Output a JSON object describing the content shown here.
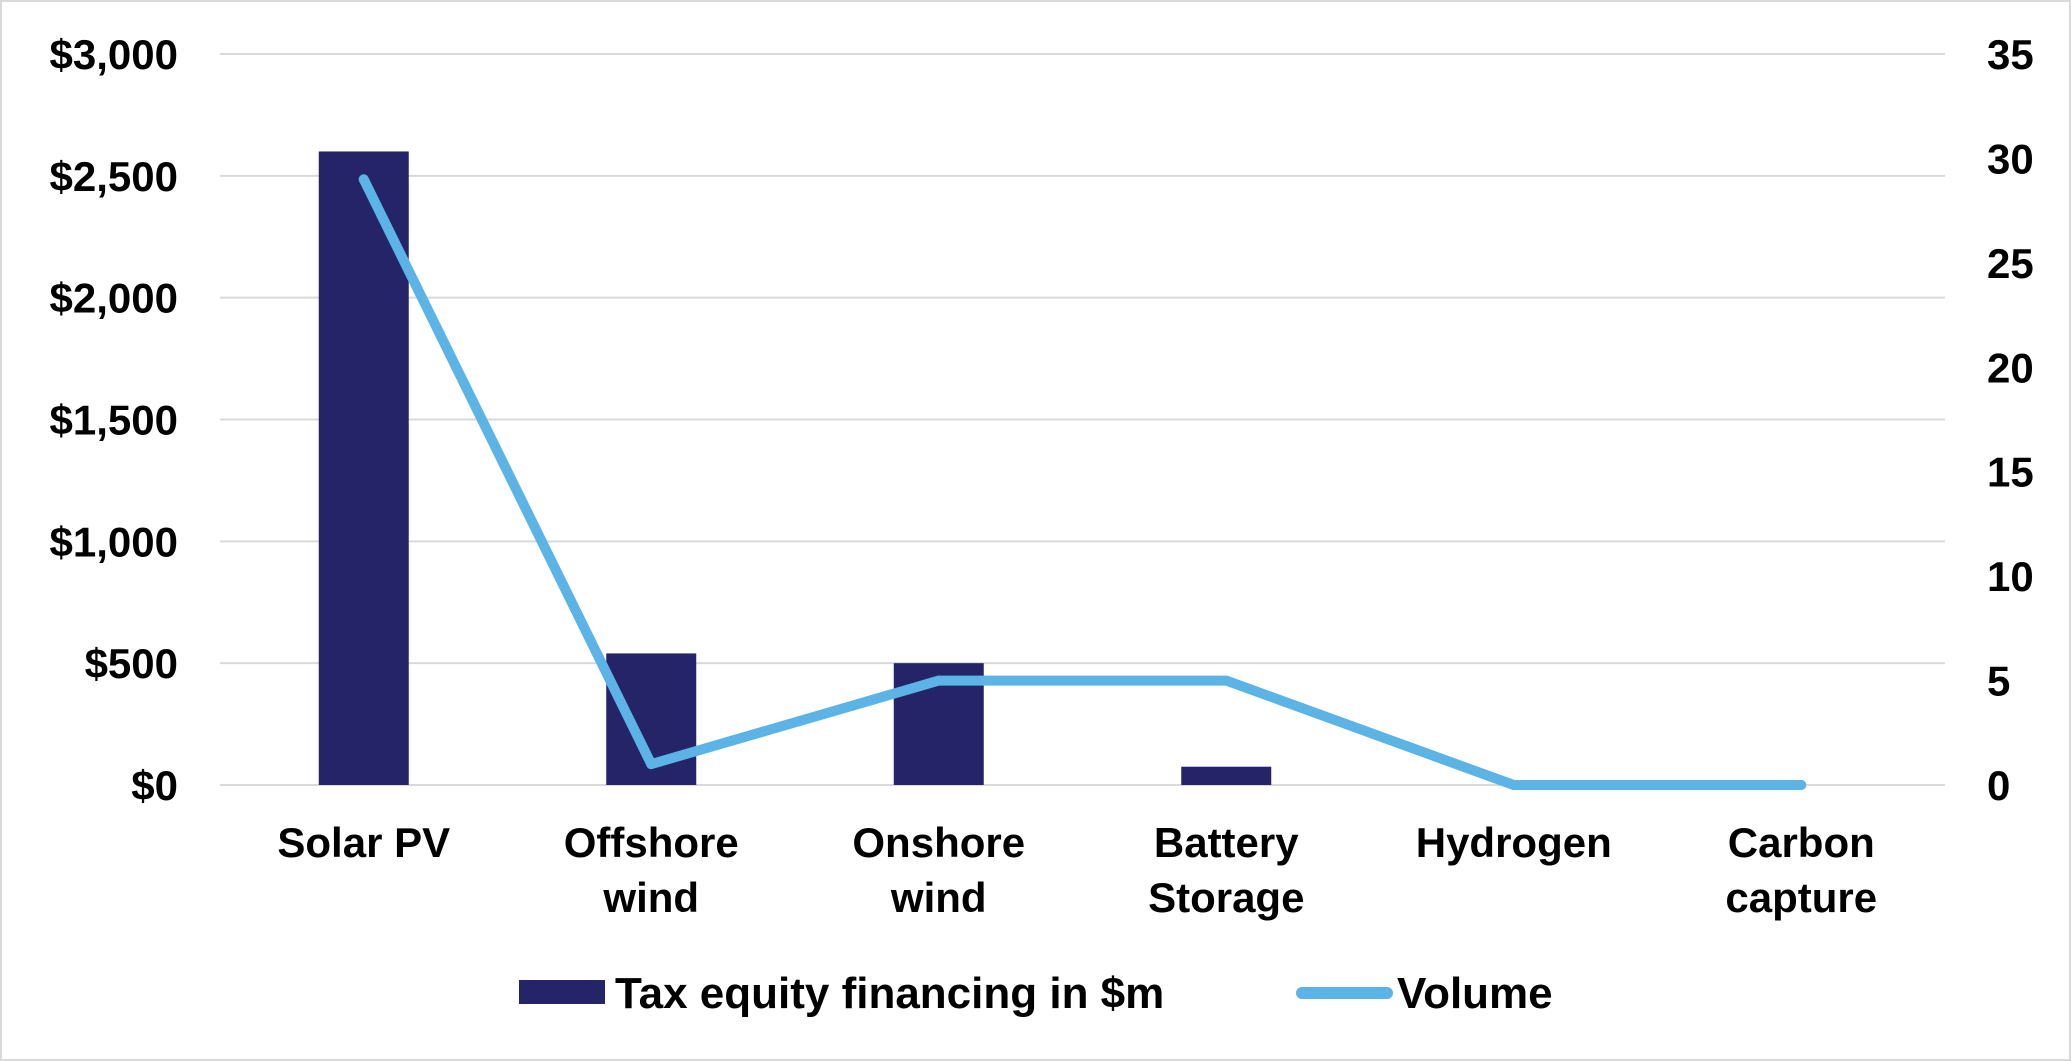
{
  "chart_data": {
    "type": "bar",
    "categories": [
      [
        "Solar PV"
      ],
      [
        "Offshore",
        "wind"
      ],
      [
        "Onshore",
        "wind"
      ],
      [
        "Battery",
        "Storage"
      ],
      [
        "Hydrogen"
      ],
      [
        "Carbon",
        "capture"
      ]
    ],
    "series": [
      {
        "name": "Tax equity financing in $m",
        "type": "bar",
        "axis": "left",
        "color": "#252469",
        "values": [
          2600,
          540,
          500,
          75,
          0,
          0
        ]
      },
      {
        "name": "Volume",
        "type": "line",
        "axis": "right",
        "color": "#5bb4e5",
        "values": [
          29,
          1,
          5,
          5,
          0,
          0
        ]
      }
    ],
    "y_left": {
      "min": 0,
      "max": 3000,
      "ticks": [
        0,
        500,
        1000,
        1500,
        2000,
        2500,
        3000
      ],
      "tick_labels": [
        "$0",
        "$500",
        "$1,000",
        "$1,500",
        "$2,000",
        "$2,500",
        "$3,000"
      ]
    },
    "y_right": {
      "min": 0,
      "max": 35,
      "ticks": [
        0,
        5,
        10,
        15,
        20,
        25,
        30,
        35
      ],
      "tick_labels": [
        "0",
        "5",
        "10",
        "15",
        "20",
        "25",
        "30",
        "35"
      ]
    },
    "grid": true,
    "grid_color": "#d9d9d9",
    "legend_position": "bottom"
  }
}
